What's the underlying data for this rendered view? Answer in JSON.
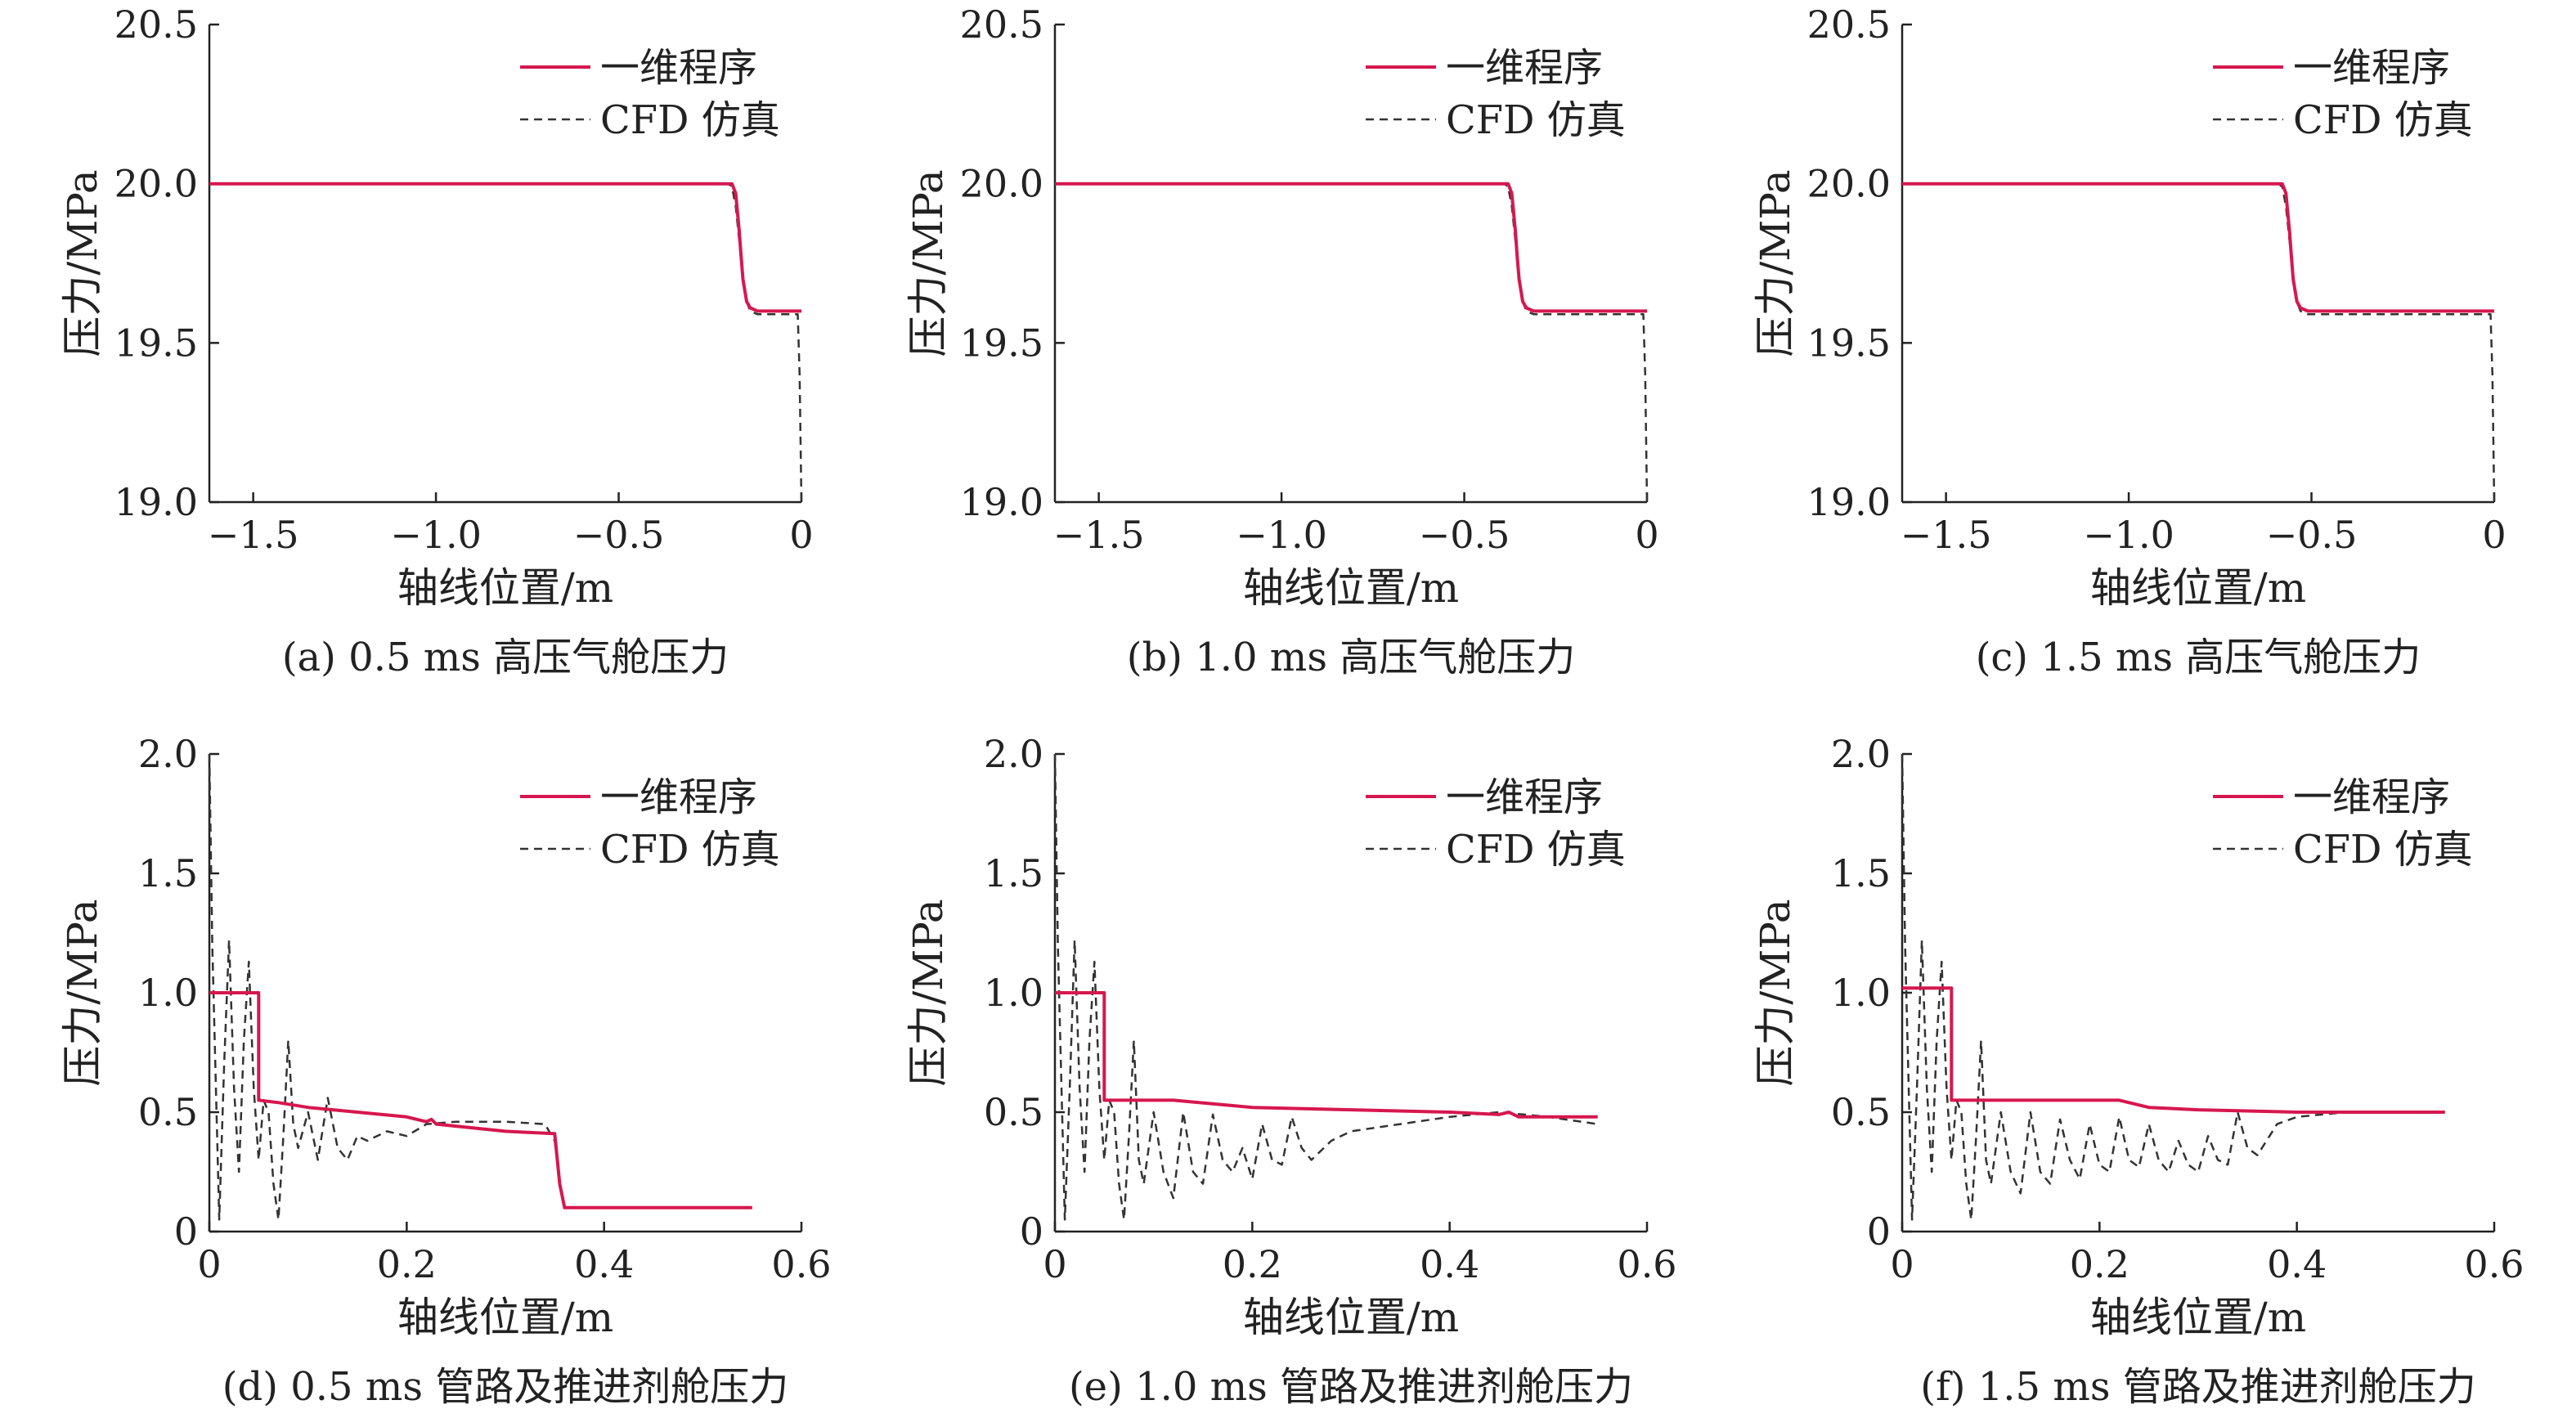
{
  "chart_data": [
    {
      "type": "line",
      "caption": "(a) 0.5 ms 高压气舱压力",
      "xlabel": "轴线位置/m",
      "ylabel": "压力/MPa",
      "xlim": [
        -1.62,
        0
      ],
      "ylim": [
        19.0,
        20.5
      ],
      "xticks": [
        -1.5,
        -1.0,
        -0.5,
        0
      ],
      "xtick_labels": [
        "−1.5",
        "−1.0",
        "−0.5",
        "0"
      ],
      "yticks": [
        19.0,
        19.5,
        20.0,
        20.5
      ],
      "ytick_labels": [
        "19.0",
        "19.5",
        "20.0",
        "20.5"
      ],
      "legend_position": "top-right",
      "series": [
        {
          "name": "一维程序",
          "color": "#d6174f",
          "style": "solid",
          "x": [
            -1.62,
            -0.19,
            -0.18,
            -0.17,
            -0.165,
            -0.16,
            -0.15,
            -0.14,
            -0.12,
            0
          ],
          "y": [
            20.0,
            20.0,
            19.97,
            19.85,
            19.77,
            19.7,
            19.63,
            19.61,
            19.6,
            19.6
          ]
        },
        {
          "name": "CFD 仿真",
          "color": "#333333",
          "style": "dashed",
          "x": [
            -1.62,
            -0.2,
            -0.19,
            -0.18,
            -0.17,
            -0.16,
            -0.15,
            -0.14,
            -0.12,
            -0.01,
            -0.005,
            0
          ],
          "y": [
            20.0,
            20.0,
            19.99,
            19.93,
            19.82,
            19.7,
            19.63,
            19.6,
            19.59,
            19.59,
            19.4,
            19.0
          ]
        }
      ]
    },
    {
      "type": "line",
      "caption": "(b) 1.0 ms 高压气舱压力",
      "xlabel": "轴线位置/m",
      "ylabel": "压力/MPa",
      "xlim": [
        -1.62,
        0
      ],
      "ylim": [
        19.0,
        20.5
      ],
      "xticks": [
        -1.5,
        -1.0,
        -0.5,
        0
      ],
      "xtick_labels": [
        "−1.5",
        "−1.0",
        "−0.5",
        "0"
      ],
      "yticks": [
        19.0,
        19.5,
        20.0,
        20.5
      ],
      "ytick_labels": [
        "19.0",
        "19.5",
        "20.0",
        "20.5"
      ],
      "legend_position": "top-right",
      "series": [
        {
          "name": "一维程序",
          "color": "#d6174f",
          "style": "solid",
          "x": [
            -1.62,
            -0.38,
            -0.37,
            -0.36,
            -0.355,
            -0.35,
            -0.34,
            -0.33,
            -0.31,
            0
          ],
          "y": [
            20.0,
            20.0,
            19.97,
            19.85,
            19.77,
            19.7,
            19.63,
            19.61,
            19.6,
            19.6
          ]
        },
        {
          "name": "CFD 仿真",
          "color": "#333333",
          "style": "dashed",
          "x": [
            -1.62,
            -0.39,
            -0.38,
            -0.37,
            -0.36,
            -0.35,
            -0.34,
            -0.33,
            -0.31,
            -0.01,
            -0.005,
            0
          ],
          "y": [
            20.0,
            20.0,
            19.99,
            19.93,
            19.82,
            19.7,
            19.63,
            19.6,
            19.59,
            19.59,
            19.4,
            19.0
          ]
        }
      ]
    },
    {
      "type": "line",
      "caption": "(c) 1.5 ms 高压气舱压力",
      "xlabel": "轴线位置/m",
      "ylabel": "压力/MPa",
      "xlim": [
        -1.62,
        0
      ],
      "ylim": [
        19.0,
        20.5
      ],
      "xticks": [
        -1.5,
        -1.0,
        -0.5,
        0
      ],
      "xtick_labels": [
        "−1.5",
        "−1.0",
        "−0.5",
        "0"
      ],
      "yticks": [
        19.0,
        19.5,
        20.0,
        20.5
      ],
      "ytick_labels": [
        "19.0",
        "19.5",
        "20.0",
        "20.5"
      ],
      "legend_position": "top-right",
      "series": [
        {
          "name": "一维程序",
          "color": "#d6174f",
          "style": "solid",
          "x": [
            -1.62,
            -0.58,
            -0.57,
            -0.56,
            -0.555,
            -0.55,
            -0.54,
            -0.53,
            -0.51,
            0
          ],
          "y": [
            20.0,
            20.0,
            19.97,
            19.85,
            19.77,
            19.7,
            19.63,
            19.61,
            19.6,
            19.6
          ]
        },
        {
          "name": "CFD 仿真",
          "color": "#333333",
          "style": "dashed",
          "x": [
            -1.62,
            -0.59,
            -0.58,
            -0.57,
            -0.56,
            -0.55,
            -0.54,
            -0.53,
            -0.51,
            -0.01,
            -0.005,
            0
          ],
          "y": [
            20.0,
            20.0,
            19.99,
            19.93,
            19.82,
            19.7,
            19.63,
            19.6,
            19.59,
            19.59,
            19.4,
            19.0
          ]
        }
      ]
    },
    {
      "type": "line",
      "caption": "(d) 0.5 ms 管路及推进剂舱压力",
      "xlabel": "轴线位置/m",
      "ylabel": "压力/MPa",
      "xlim": [
        0,
        0.6
      ],
      "ylim": [
        0,
        2.0
      ],
      "xticks": [
        0,
        0.2,
        0.4,
        0.6
      ],
      "xtick_labels": [
        "0",
        "0.2",
        "0.4",
        "0.6"
      ],
      "yticks": [
        0,
        0.5,
        1.0,
        1.5,
        2.0
      ],
      "ytick_labels": [
        "0",
        "0.5",
        "1.0",
        "1.5",
        "2.0"
      ],
      "legend_position": "top-right",
      "series": [
        {
          "name": "一维程序",
          "color": "#d6174f",
          "style": "solid",
          "x": [
            0,
            0.05,
            0.05,
            0.07,
            0.1,
            0.15,
            0.2,
            0.22,
            0.225,
            0.23,
            0.3,
            0.35,
            0.355,
            0.36,
            0.55
          ],
          "y": [
            1.0,
            1.0,
            0.55,
            0.54,
            0.52,
            0.5,
            0.48,
            0.46,
            0.47,
            0.45,
            0.42,
            0.41,
            0.2,
            0.1,
            0.1
          ]
        },
        {
          "name": "CFD 仿真",
          "color": "#333333",
          "style": "dashed",
          "x": [
            0,
            0.003,
            0.01,
            0.015,
            0.02,
            0.025,
            0.03,
            0.035,
            0.04,
            0.045,
            0.05,
            0.055,
            0.06,
            0.065,
            0.07,
            0.075,
            0.08,
            0.085,
            0.09,
            0.1,
            0.11,
            0.12,
            0.13,
            0.14,
            0.15,
            0.16,
            0.18,
            0.2,
            0.22,
            0.25,
            0.3,
            0.34,
            0.35,
            0.355,
            0.36,
            0.37,
            0.55
          ],
          "y": [
            2.0,
            1.2,
            0.05,
            0.7,
            1.22,
            0.6,
            0.25,
            0.8,
            1.13,
            0.6,
            0.3,
            0.55,
            0.5,
            0.2,
            0.05,
            0.4,
            0.8,
            0.45,
            0.35,
            0.5,
            0.3,
            0.56,
            0.35,
            0.3,
            0.4,
            0.38,
            0.42,
            0.4,
            0.45,
            0.46,
            0.46,
            0.45,
            0.38,
            0.2,
            0.1,
            0.1,
            0.1
          ]
        }
      ]
    },
    {
      "type": "line",
      "caption": "(e) 1.0 ms 管路及推进剂舱压力",
      "xlabel": "轴线位置/m",
      "ylabel": "压力/MPa",
      "xlim": [
        0,
        0.6
      ],
      "ylim": [
        0,
        2.0
      ],
      "xticks": [
        0,
        0.2,
        0.4,
        0.6
      ],
      "xtick_labels": [
        "0",
        "0.2",
        "0.4",
        "0.6"
      ],
      "yticks": [
        0,
        0.5,
        1.0,
        1.5,
        2.0
      ],
      "ytick_labels": [
        "0",
        "0.5",
        "1.0",
        "1.5",
        "2.0"
      ],
      "legend_position": "top-right",
      "series": [
        {
          "name": "一维程序",
          "color": "#d6174f",
          "style": "solid",
          "x": [
            0,
            0.05,
            0.05,
            0.12,
            0.2,
            0.3,
            0.4,
            0.45,
            0.46,
            0.47,
            0.55
          ],
          "y": [
            1.0,
            1.0,
            0.55,
            0.55,
            0.52,
            0.51,
            0.5,
            0.49,
            0.5,
            0.48,
            0.48
          ]
        },
        {
          "name": "CFD 仿真",
          "color": "#333333",
          "style": "dashed",
          "x": [
            0,
            0.003,
            0.01,
            0.015,
            0.02,
            0.025,
            0.03,
            0.035,
            0.04,
            0.045,
            0.05,
            0.055,
            0.06,
            0.065,
            0.07,
            0.075,
            0.08,
            0.085,
            0.09,
            0.1,
            0.11,
            0.12,
            0.13,
            0.14,
            0.15,
            0.16,
            0.17,
            0.18,
            0.19,
            0.2,
            0.21,
            0.22,
            0.23,
            0.24,
            0.25,
            0.26,
            0.28,
            0.3,
            0.35,
            0.4,
            0.45,
            0.5,
            0.55
          ],
          "y": [
            2.0,
            1.2,
            0.05,
            0.6,
            1.22,
            0.6,
            0.25,
            0.8,
            1.13,
            0.6,
            0.3,
            0.55,
            0.5,
            0.2,
            0.05,
            0.4,
            0.8,
            0.3,
            0.2,
            0.5,
            0.25,
            0.14,
            0.5,
            0.25,
            0.2,
            0.49,
            0.3,
            0.25,
            0.35,
            0.22,
            0.45,
            0.3,
            0.28,
            0.48,
            0.35,
            0.3,
            0.38,
            0.42,
            0.45,
            0.48,
            0.5,
            0.48,
            0.45
          ]
        }
      ]
    },
    {
      "type": "line",
      "caption": "(f) 1.5 ms 管路及推进剂舱压力",
      "xlabel": "轴线位置/m",
      "ylabel": "压力/MPa",
      "xlim": [
        0,
        0.6
      ],
      "ylim": [
        0,
        2.0
      ],
      "xticks": [
        0,
        0.2,
        0.4,
        0.6
      ],
      "xtick_labels": [
        "0",
        "0.2",
        "0.4",
        "0.6"
      ],
      "yticks": [
        0,
        0.5,
        1.0,
        1.5,
        2.0
      ],
      "ytick_labels": [
        "0",
        "0.5",
        "1.0",
        "1.5",
        "2.0"
      ],
      "legend_position": "top-right",
      "series": [
        {
          "name": "一维程序",
          "color": "#d6174f",
          "style": "solid",
          "x": [
            0,
            0.05,
            0.05,
            0.22,
            0.25,
            0.3,
            0.4,
            0.55
          ],
          "y": [
            1.02,
            1.02,
            0.55,
            0.55,
            0.52,
            0.51,
            0.5,
            0.5
          ]
        },
        {
          "name": "CFD 仿真",
          "color": "#333333",
          "style": "dashed",
          "x": [
            0,
            0.003,
            0.01,
            0.015,
            0.02,
            0.025,
            0.03,
            0.035,
            0.04,
            0.045,
            0.05,
            0.055,
            0.06,
            0.065,
            0.07,
            0.075,
            0.08,
            0.085,
            0.09,
            0.1,
            0.11,
            0.12,
            0.13,
            0.14,
            0.15,
            0.16,
            0.17,
            0.18,
            0.19,
            0.2,
            0.21,
            0.22,
            0.23,
            0.24,
            0.25,
            0.26,
            0.27,
            0.28,
            0.29,
            0.3,
            0.31,
            0.32,
            0.33,
            0.34,
            0.35,
            0.36,
            0.38,
            0.4,
            0.45,
            0.55
          ],
          "y": [
            2.0,
            1.2,
            0.05,
            0.6,
            1.22,
            0.6,
            0.25,
            0.8,
            1.13,
            0.6,
            0.3,
            0.55,
            0.5,
            0.2,
            0.05,
            0.4,
            0.8,
            0.3,
            0.2,
            0.5,
            0.25,
            0.16,
            0.5,
            0.25,
            0.2,
            0.47,
            0.3,
            0.22,
            0.45,
            0.28,
            0.25,
            0.48,
            0.3,
            0.27,
            0.45,
            0.3,
            0.25,
            0.38,
            0.28,
            0.25,
            0.4,
            0.3,
            0.28,
            0.5,
            0.35,
            0.32,
            0.45,
            0.48,
            0.5,
            0.5
          ]
        }
      ]
    }
  ]
}
